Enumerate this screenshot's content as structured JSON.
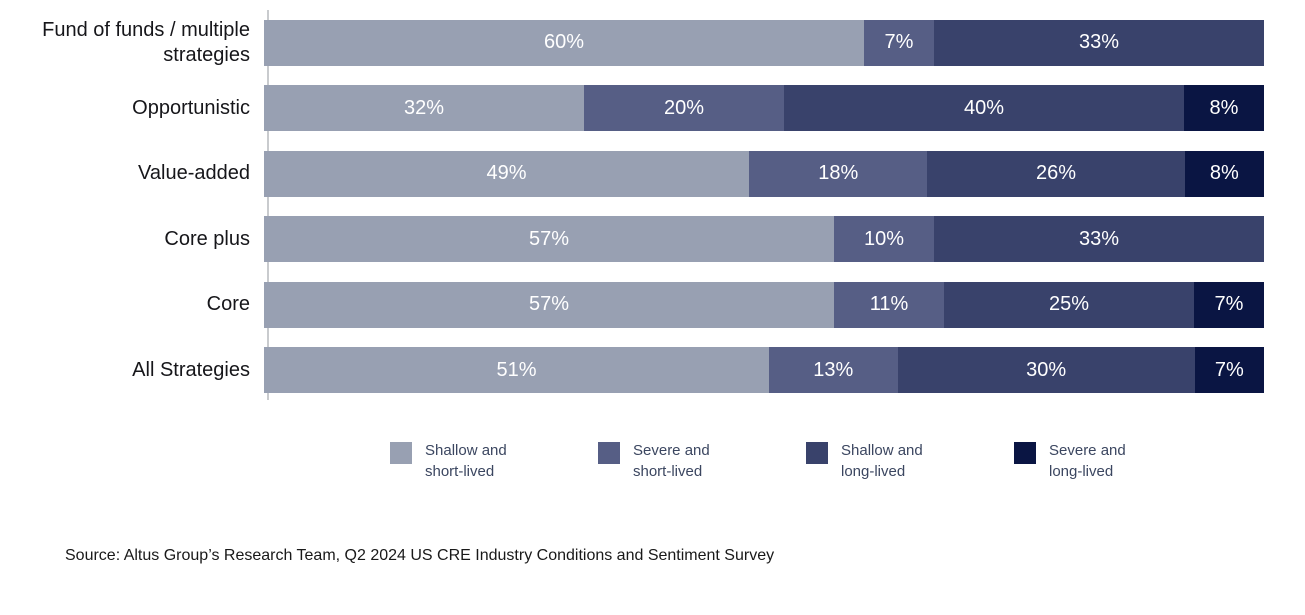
{
  "chart_data": {
    "type": "bar",
    "orientation": "horizontal",
    "stacked": true,
    "value_format": "percent",
    "xlim": [
      0,
      100
    ],
    "grid": false,
    "legend_position": "bottom",
    "categories": [
      "Fund of funds / multiple strategies",
      "Opportunistic",
      "Value-added",
      "Core plus",
      "Core",
      "All Strategies"
    ],
    "series": [
      {
        "name": "Shallow and short-lived",
        "color": "#98a0b2",
        "values": [
          60,
          32,
          49,
          57,
          57,
          51
        ]
      },
      {
        "name": "Severe and short-lived",
        "color": "#565e85",
        "values": [
          7,
          20,
          18,
          10,
          11,
          13
        ]
      },
      {
        "name": "Shallow and long-lived",
        "color": "#39426b",
        "values": [
          33,
          40,
          26,
          33,
          25,
          30
        ]
      },
      {
        "name": "Severe and long-lived",
        "color": "#0a1543",
        "values": [
          0,
          8,
          8,
          0,
          7,
          7
        ]
      }
    ]
  },
  "legend": {
    "items": [
      {
        "line1": "Shallow and",
        "line2": "short-lived",
        "color": "#98a0b2"
      },
      {
        "line1": "Severe and",
        "line2": "short-lived",
        "color": "#565e85"
      },
      {
        "line1": "Shallow and",
        "line2": "long-lived",
        "color": "#39426b"
      },
      {
        "line1": "Severe and",
        "line2": "long-lived",
        "color": "#0a1543"
      }
    ]
  },
  "source": {
    "text": "Source: Altus Group’s Research Team, Q2 2024 US CRE Industry Conditions and Sentiment Survey"
  }
}
